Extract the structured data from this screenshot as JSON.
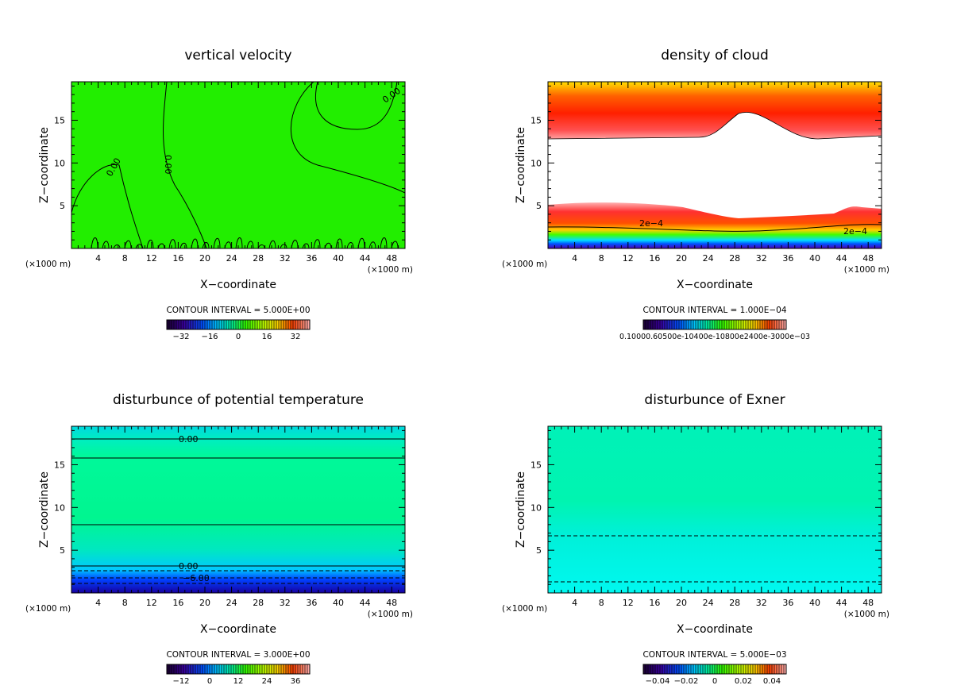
{
  "chart_data": [
    {
      "type": "heatmap",
      "title": "vertical velocity",
      "xlabel": "X−coordinate",
      "ylabel": "Z−coordinate",
      "x_unit": "(×1000 m)",
      "x_ticks": [
        4,
        8,
        12,
        16,
        20,
        24,
        28,
        32,
        36,
        40,
        44,
        48
      ],
      "y_ticks": [
        5,
        10,
        15
      ],
      "xlim": [
        0,
        50
      ],
      "ylim": [
        0,
        19.5
      ],
      "contour_interval": "CONTOUR INTERVAL = 5.000E+00",
      "contour_labels": [
        "0.00",
        "0.00",
        "0.00"
      ],
      "colorbar_ticks": [
        "−32",
        "−16",
        "0",
        "16",
        "32"
      ],
      "field_color": "#22ee00"
    },
    {
      "type": "heatmap",
      "title": "density of cloud",
      "xlabel": "X−coordinate",
      "ylabel": "Z−coordinate",
      "x_unit": "(×1000 m)",
      "x_ticks": [
        4,
        8,
        12,
        16,
        20,
        24,
        28,
        32,
        36,
        40,
        44,
        48
      ],
      "y_ticks": [
        5,
        10,
        15
      ],
      "xlim": [
        0,
        50
      ],
      "ylim": [
        0,
        19.5
      ],
      "contour_interval": "CONTOUR INTERVAL = 1.000E−04",
      "contour_labels": [
        "2e−4",
        "2e−4"
      ],
      "colorbar_ticks_text": "0.10000.60500e-10400e-10800e2400e-3000e−03",
      "field_color": "#ff2200"
    },
    {
      "type": "heatmap",
      "title": "disturbunce of potential temperature",
      "xlabel": "X−coordinate",
      "ylabel": "Z−coordinate",
      "x_unit": "(×1000 m)",
      "x_ticks": [
        4,
        8,
        12,
        16,
        20,
        24,
        28,
        32,
        36,
        40,
        44,
        48
      ],
      "y_ticks": [
        5,
        10,
        15
      ],
      "xlim": [
        0,
        50
      ],
      "ylim": [
        0,
        19.5
      ],
      "contour_interval": "CONTOUR INTERVAL = 3.000E+00",
      "contour_labels": [
        "0.00",
        "0.00",
        "−6.00"
      ],
      "colorbar_ticks": [
        "−12",
        "0",
        "12",
        "24",
        "36"
      ],
      "field_color": "#00ee88"
    },
    {
      "type": "heatmap",
      "title": "disturbunce of Exner",
      "xlabel": "X−coordinate",
      "ylabel": "Z−coordinate",
      "x_unit": "(×1000 m)",
      "x_ticks": [
        4,
        8,
        12,
        16,
        20,
        24,
        28,
        32,
        36,
        40,
        44,
        48
      ],
      "y_ticks": [
        5,
        10,
        15
      ],
      "xlim": [
        0,
        50
      ],
      "ylim": [
        0,
        19.5
      ],
      "contour_interval": "CONTOUR INTERVAL = 5.000E−03",
      "contour_labels": [],
      "colorbar_ticks": [
        "−0.04",
        "−0.02",
        "0",
        "0.02",
        "0.04"
      ],
      "field_color": "#00f0c0"
    }
  ]
}
